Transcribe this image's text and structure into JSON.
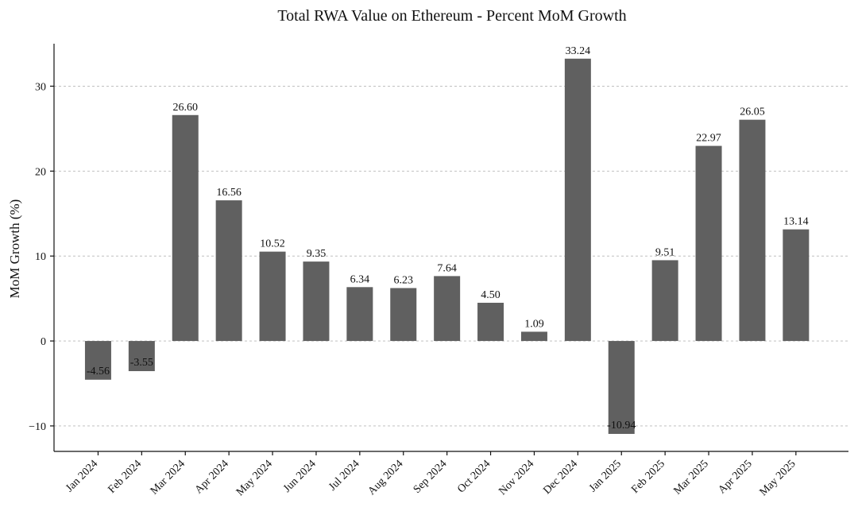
{
  "chart_data": {
    "type": "bar",
    "title": "Total RWA Value on Ethereum - Percent MoM Growth",
    "xlabel": "",
    "ylabel": "MoM Growth (%)",
    "ylim": [
      -13,
      35
    ],
    "yticks": [
      -10,
      0,
      10,
      20,
      30
    ],
    "ytick_labels": [
      "−10",
      "0",
      "10",
      "20",
      "30"
    ],
    "grid": "horizontal-dashed",
    "bar_color": "#606060",
    "categories": [
      "Jan 2024",
      "Feb 2024",
      "Mar 2024",
      "Apr 2024",
      "May 2024",
      "Jun 2024",
      "Jul 2024",
      "Aug 2024",
      "Sep 2024",
      "Oct 2024",
      "Nov 2024",
      "Dec 2024",
      "Jan 2025",
      "Feb 2025",
      "Mar 2025",
      "Apr 2025",
      "May 2025"
    ],
    "values": [
      -4.56,
      -3.55,
      26.6,
      16.56,
      10.52,
      9.35,
      6.34,
      6.23,
      7.64,
      4.5,
      1.09,
      33.24,
      -10.94,
      9.51,
      22.97,
      26.05,
      13.14
    ],
    "value_labels": [
      "-4.56",
      "-3.55",
      "26.60",
      "16.56",
      "10.52",
      "9.35",
      "6.34",
      "6.23",
      "7.64",
      "4.50",
      "1.09",
      "33.24",
      "-10.94",
      "9.51",
      "22.97",
      "26.05",
      "13.14"
    ]
  }
}
